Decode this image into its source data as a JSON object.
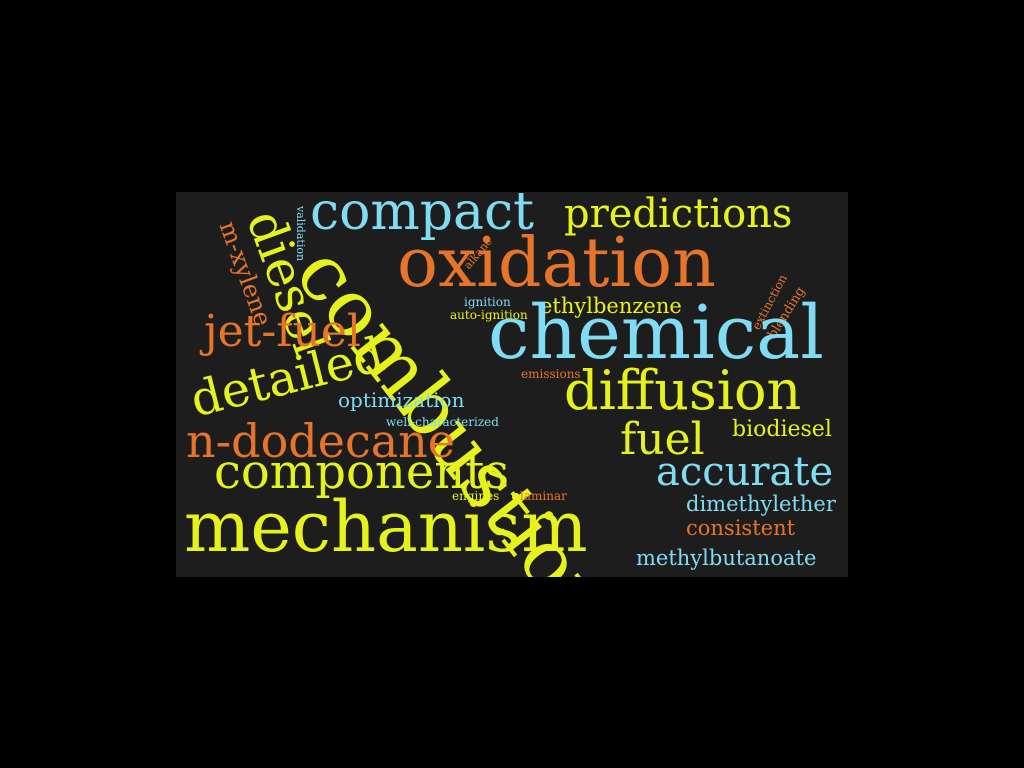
{
  "colors": {
    "background": "#000000",
    "panel": "#1e1d1d",
    "yellow": "#e6f21c",
    "orange": "#e6752a",
    "cyan": "#7fdcf2"
  },
  "words": {
    "compact": "compact",
    "predictions": "predictions",
    "diesel": "diesel",
    "m_xylene": "m-xylene",
    "validation": "validation",
    "oxidation": "oxidation",
    "alkane": "alkane",
    "combustion": "combustion",
    "extinction": "extinction",
    "blending": "blending",
    "ignition": "ignition",
    "auto_ignition": "auto-ignition",
    "ethylbenzene": "ethylbenzene",
    "jet_fuel": "jet-fuel",
    "chemical": "chemical",
    "emissions": "emissions",
    "detailed": "detailed",
    "diffusion": "diffusion",
    "optimization": "optimization",
    "well_characterized": "well-characterized",
    "biodiesel": "biodiesel",
    "n_dodecane": "n-dodecane",
    "fuel": "fuel",
    "components": "components",
    "accurate": "accurate",
    "engines": "engines",
    "laminar": "laminar",
    "dimethylether": "dimethylether",
    "consistent": "consistent",
    "mechanism": "mechanism",
    "methylbutanoate": "methylbutanoate"
  }
}
